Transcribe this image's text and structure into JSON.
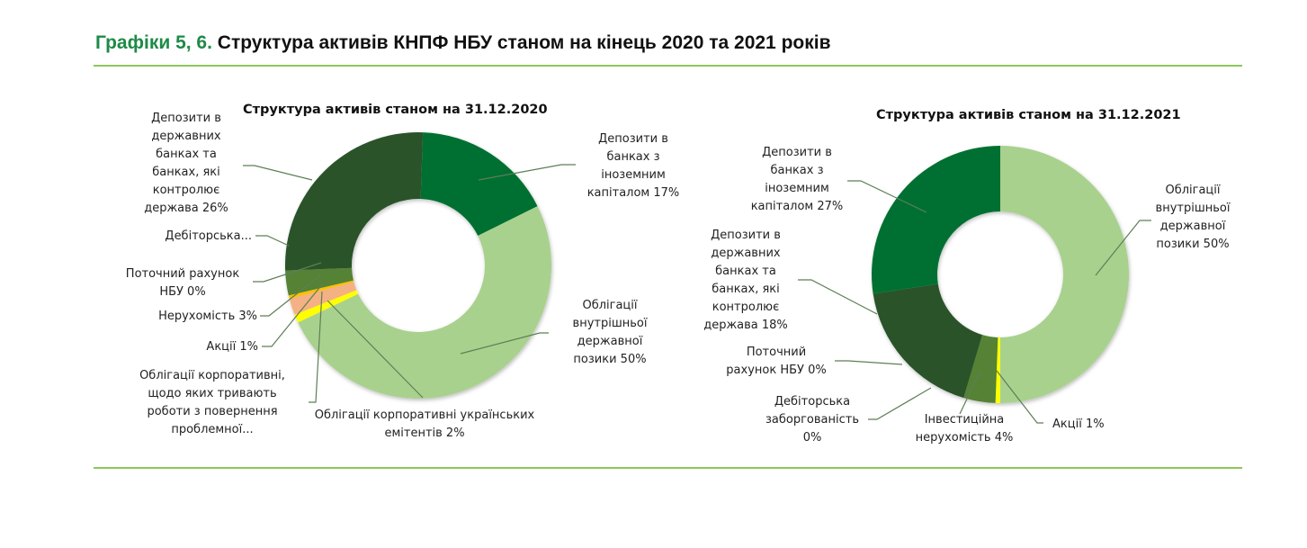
{
  "header": {
    "title_prefix": "Графіки 5, 6.",
    "title_text": "Структура активів КНПФ НБУ станом на кінець 2020 та 2021 років"
  },
  "colors": {
    "accent_title": "#1e8a46",
    "rule": "#8cc85a"
  },
  "chart_data": [
    {
      "type": "pie",
      "variant": "donut",
      "title": "Структура активів станом на 31.12.2020",
      "categories": [
        "Депозити в банках з іноземним капіталом",
        "Облігації внутрішньої державної позики",
        "Акції",
        "Облігації корпоративні українських емітентів",
        "Облігації корпоративні, щодо яких тривають роботи з повернення проблемної...",
        "Нерухомість",
        "Поточний рахунок НБУ",
        "Дебіторська...",
        "Депозити в державних банках та банках, які контролює держава"
      ],
      "values": [
        17,
        50,
        1,
        2,
        0.4,
        3,
        0,
        0,
        26
      ],
      "labels": [
        "17%",
        "50%",
        "1%",
        "2%",
        "",
        "3%",
        "0%",
        "",
        "26%"
      ],
      "colors": [
        "#067032",
        "#a9d18e",
        "#ffff00",
        "#f4b183",
        "#ffc000",
        "#548235",
        "#3a6b2a",
        "#2f5a28",
        "#2b5329"
      ]
    },
    {
      "type": "pie",
      "variant": "donut",
      "title": "Структура активів станом на 31.12.2021",
      "categories": [
        "Облігації внутрішньої державної позики",
        "Акції",
        "Інвестиційна нерухомість",
        "Дебіторська заборгованість",
        "Поточний рахунок НБУ",
        "Депозити в державних банках та банках, які контролює держава",
        "Депозити в банках з іноземним капіталом"
      ],
      "values": [
        50,
        0.6,
        4,
        0,
        0,
        18,
        27.4
      ],
      "labels": [
        "50%",
        "1%",
        "4%",
        "0%",
        "0%",
        "18%",
        "27%"
      ],
      "colors": [
        "#a9d18e",
        "#ffff00",
        "#548235",
        "#3a6b2a",
        "#2f5a28",
        "#2b5329",
        "#067032"
      ]
    }
  ],
  "chart2020": {
    "title": "Структура активів станом на 31.12.2020",
    "labels": {
      "state_banks": "Депозити в\nдержавних\nбанках та\nбанках, які\nконтролює\nдержава 26%",
      "receivables": "Дебіторська...",
      "nbu_account": "Поточний рахунок\nНБУ 0%",
      "real_estate": "Нерухомість 3%",
      "shares": "Акції 1%",
      "corp_problem": "Облігації корпоративні,\nщодо яких тривають\nроботи з повернення\nпроблемної...",
      "corp_ua": "Облігації корпоративні українських\nемітентів 2%",
      "ovdp": "Облігації\nвнутрішньої\nдержавної\nпозики 50%",
      "foreign_banks": "Депозити в\nбанках з\nіноземним\nкапіталом 17%"
    }
  },
  "chart2021": {
    "title": "Структура активів станом на 31.12.2021",
    "labels": {
      "foreign_banks": "Депозити в\nбанках з\nіноземним\nкапіталом 27%",
      "state_banks": "Депозити в\nдержавних\nбанках та\nбанках, які\nконтролює\nдержава 18%",
      "nbu_account": "Поточний\nрахунок НБУ 0%",
      "receivables": "Дебіторська\nзаборгованість\n0%",
      "real_estate": "Інвестиційна\nнерухомість 4%",
      "shares": "Акції 1%",
      "ovdp": "Облігації\nвнутрішньої\nдержавної\nпозики 50%"
    }
  }
}
